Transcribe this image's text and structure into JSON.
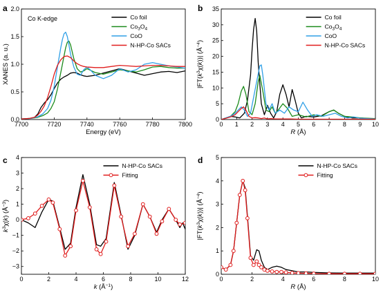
{
  "chart_data": [
    {
      "panel": "a",
      "type": "line",
      "annotation": "Co K-edge",
      "xlabel": "Energy (eV)",
      "ylabel": "XANES (a. u.)",
      "xlim": [
        7700,
        7800
      ],
      "ylim": [
        0,
        2.0
      ],
      "xticks": [
        "7700",
        "7720",
        "7740",
        "7760",
        "7780",
        "7800"
      ],
      "yticks": [
        "0.0",
        "0.5",
        "1.0",
        "1.5",
        "2.0"
      ],
      "legend": "top-right",
      "series": [
        {
          "name": "Co foil",
          "color": "#000000",
          "x": [
            7700,
            7705,
            7708,
            7710,
            7712,
            7714,
            7716,
            7718,
            7720,
            7722,
            7724,
            7726,
            7728,
            7730,
            7732,
            7734,
            7736,
            7738,
            7740,
            7745,
            7750,
            7755,
            7760,
            7765,
            7770,
            7775,
            7780,
            7785,
            7790,
            7795,
            7800
          ],
          "y": [
            0.01,
            0.02,
            0.04,
            0.1,
            0.22,
            0.3,
            0.36,
            0.45,
            0.56,
            0.66,
            0.73,
            0.77,
            0.8,
            0.84,
            0.85,
            0.84,
            0.81,
            0.79,
            0.78,
            0.8,
            0.84,
            0.88,
            0.92,
            0.88,
            0.84,
            0.8,
            0.83,
            0.86,
            0.87,
            0.85,
            0.88
          ]
        },
        {
          "name": "Co3O4",
          "color": "#1a8a1a",
          "x": [
            7700,
            7706,
            7710,
            7713,
            7716,
            7718,
            7720,
            7722,
            7724,
            7725,
            7726,
            7727,
            7728,
            7729,
            7730,
            7732,
            7734,
            7736,
            7738,
            7740,
            7745,
            7750,
            7755,
            7760,
            7765,
            7770,
            7775,
            7780,
            7785,
            7790,
            7795,
            7800
          ],
          "y": [
            0.01,
            0.02,
            0.04,
            0.07,
            0.12,
            0.2,
            0.32,
            0.55,
            0.85,
            1.0,
            1.15,
            1.3,
            1.4,
            1.42,
            1.35,
            1.1,
            0.92,
            0.86,
            0.88,
            0.92,
            0.85,
            0.82,
            0.86,
            0.9,
            0.88,
            0.86,
            0.9,
            0.95,
            0.96,
            0.94,
            0.93,
            0.93
          ]
        },
        {
          "name": "CoO",
          "color": "#2f9fe6",
          "x": [
            7700,
            7706,
            7710,
            7713,
            7716,
            7718,
            7720,
            7722,
            7724,
            7725,
            7726,
            7727,
            7728,
            7729,
            7730,
            7732,
            7734,
            7736,
            7738,
            7740,
            7742,
            7745,
            7750,
            7755,
            7760,
            7765,
            7770,
            7775,
            7780,
            7785,
            7790,
            7795,
            7800
          ],
          "y": [
            0.01,
            0.02,
            0.05,
            0.1,
            0.2,
            0.35,
            0.6,
            0.95,
            1.3,
            1.45,
            1.55,
            1.58,
            1.5,
            1.35,
            1.18,
            0.95,
            0.82,
            0.8,
            0.9,
            0.95,
            0.9,
            0.8,
            0.74,
            0.8,
            0.92,
            0.86,
            0.9,
            1.0,
            1.03,
            1.0,
            0.97,
            0.95,
            0.93
          ]
        },
        {
          "name": "N-HP-Co SACs",
          "color": "#e01b1b",
          "x": [
            7700,
            7705,
            7708,
            7710,
            7712,
            7714,
            7716,
            7718,
            7720,
            7722,
            7724,
            7726,
            7728,
            7730,
            7732,
            7734,
            7736,
            7738,
            7740,
            7745,
            7750,
            7755,
            7760,
            7765,
            7770,
            7775,
            7780,
            7785,
            7790,
            7795,
            7800
          ],
          "y": [
            0.01,
            0.02,
            0.04,
            0.08,
            0.15,
            0.25,
            0.4,
            0.6,
            0.82,
            0.98,
            1.08,
            1.14,
            1.15,
            1.12,
            1.06,
            1.01,
            0.98,
            0.96,
            0.95,
            0.94,
            0.94,
            0.96,
            0.98,
            0.97,
            0.96,
            0.97,
            0.98,
            0.98,
            0.97,
            0.96,
            0.96
          ]
        }
      ]
    },
    {
      "panel": "b",
      "type": "line",
      "xlabel": "R (Å)",
      "ylabel": "|FT(k³χ(k))| (Å⁻⁴)",
      "xlim": [
        0,
        10
      ],
      "ylim": [
        0,
        35
      ],
      "xticks": [
        "0",
        "1",
        "2",
        "3",
        "4",
        "5",
        "6",
        "7",
        "8",
        "9",
        "10"
      ],
      "yticks": [
        "0",
        "5",
        "10",
        "15",
        "20",
        "25",
        "30",
        "35"
      ],
      "legend": "top-right",
      "series": [
        {
          "name": "Co foil",
          "color": "#000000",
          "x": [
            0,
            0.3,
            0.6,
            0.9,
            1.2,
            1.5,
            1.7,
            1.9,
            2.0,
            2.1,
            2.2,
            2.3,
            2.4,
            2.6,
            2.8,
            3.0,
            3.2,
            3.4,
            3.6,
            3.8,
            4.0,
            4.2,
            4.4,
            4.6,
            4.8,
            5.0,
            5.2,
            5.5,
            6.0,
            6.5,
            7.0,
            7.3,
            7.6,
            8.0,
            8.5,
            9.0,
            9.5,
            10
          ],
          "y": [
            0,
            0.5,
            1.0,
            0.8,
            0.5,
            2.0,
            6.0,
            14.0,
            22.0,
            28.5,
            32.0,
            28.0,
            18.0,
            5.0,
            1.5,
            4.5,
            2.0,
            0.5,
            2.5,
            8.0,
            11.0,
            8.0,
            4.0,
            9.5,
            6.0,
            2.0,
            0.5,
            1.0,
            0.8,
            1.2,
            2.5,
            3.0,
            2.0,
            1.0,
            0.5,
            0.5,
            0.3,
            0.2
          ]
        },
        {
          "name": "Co3O4",
          "color": "#1a8a1a",
          "x": [
            0,
            0.3,
            0.6,
            0.9,
            1.1,
            1.3,
            1.45,
            1.6,
            1.8,
            2.0,
            2.2,
            2.4,
            2.5,
            2.7,
            2.9,
            3.1,
            3.3,
            3.5,
            3.7,
            4.0,
            4.3,
            4.6,
            5.0,
            5.5,
            6.0,
            6.5,
            7.0,
            7.3,
            7.6,
            8.0,
            8.5,
            9.0,
            10
          ],
          "y": [
            0,
            0.5,
            1.0,
            2.5,
            5.0,
            9.0,
            10.5,
            8.0,
            2.5,
            1.5,
            5.0,
            12.0,
            14.0,
            9.0,
            3.0,
            2.5,
            4.0,
            2.0,
            3.0,
            5.0,
            3.5,
            1.0,
            1.5,
            0.8,
            1.5,
            1.0,
            2.5,
            3.0,
            2.0,
            1.0,
            0.8,
            0.5,
            0.3
          ]
        },
        {
          "name": "CoO",
          "color": "#2f9fe6",
          "x": [
            0,
            0.3,
            0.6,
            0.9,
            1.1,
            1.3,
            1.5,
            1.7,
            1.9,
            2.1,
            2.3,
            2.5,
            2.6,
            2.7,
            2.9,
            3.1,
            3.3,
            3.5,
            3.8,
            4.1,
            4.4,
            4.7,
            5.0,
            5.3,
            5.6,
            5.9,
            6.2,
            6.6,
            7.0,
            7.4,
            7.8,
            8.2,
            8.6,
            9.0,
            9.5,
            10
          ],
          "y": [
            0,
            0.5,
            1.0,
            2.0,
            3.0,
            4.0,
            3.0,
            1.0,
            2.0,
            7.0,
            12.0,
            17.0,
            17.3,
            14.0,
            5.0,
            3.0,
            5.0,
            2.0,
            3.0,
            2.0,
            4.0,
            3.0,
            2.5,
            5.5,
            3.0,
            1.0,
            1.5,
            1.0,
            1.5,
            2.0,
            1.0,
            0.5,
            0.8,
            0.4,
            0.3,
            0.2
          ]
        },
        {
          "name": "N-HP-Co SACs",
          "color": "#e01b1b",
          "x": [
            0,
            0.3,
            0.6,
            0.9,
            1.1,
            1.3,
            1.45,
            1.6,
            1.8,
            2.0,
            2.2,
            2.4,
            2.6,
            2.8,
            3.0,
            3.2,
            3.5,
            4.0,
            4.5,
            5.0,
            5.5,
            6.0,
            6.5,
            7.0,
            8.0,
            9.0,
            10
          ],
          "y": [
            0,
            0.4,
            0.8,
            1.5,
            2.5,
            3.5,
            4.0,
            3.0,
            1.0,
            0.5,
            0.6,
            0.5,
            0.3,
            0.5,
            0.2,
            0.3,
            0.2,
            0.2,
            0.2,
            0.1,
            0.1,
            0.1,
            0.1,
            0.1,
            0.1,
            0.1,
            0.1
          ]
        }
      ]
    },
    {
      "panel": "c",
      "type": "line",
      "xlabel": "k (Å⁻¹)",
      "ylabel": "k³χ(k) (Å⁻³)",
      "xlim": [
        0,
        12
      ],
      "ylim": [
        -3.5,
        4
      ],
      "xticks": [
        "0",
        "2",
        "4",
        "6",
        "8",
        "10",
        "12"
      ],
      "yticks": [
        "−3",
        "−2",
        "−1",
        "0",
        "1",
        "2",
        "3",
        "4"
      ],
      "legend": "top-right",
      "series": [
        {
          "name": "N-HP-Co SACs",
          "color": "#000000",
          "x": [
            0,
            0.5,
            1.0,
            1.5,
            2.0,
            2.3,
            2.8,
            3.2,
            3.6,
            4.0,
            4.5,
            5.0,
            5.5,
            5.8,
            6.2,
            6.8,
            7.3,
            7.8,
            8.3,
            8.9,
            9.4,
            9.9,
            10.3,
            10.8,
            11.3,
            11.6,
            11.8,
            12.0
          ],
          "y": [
            0,
            -0.2,
            -0.5,
            0.5,
            1.3,
            1.2,
            -0.5,
            -1.9,
            -1.5,
            0.8,
            2.9,
            1.0,
            -1.6,
            -1.7,
            -1.2,
            2.4,
            0.3,
            -1.9,
            -1.0,
            1.0,
            0.2,
            -0.8,
            0.0,
            0.7,
            0.0,
            -0.5,
            -0.2,
            -0.6
          ]
        },
        {
          "name": "Fitting",
          "color": "#e01b1b",
          "marker": "open-circle",
          "x": [
            0,
            0.5,
            1.0,
            1.5,
            2.0,
            2.3,
            2.8,
            3.2,
            3.6,
            4.0,
            4.5,
            5.0,
            5.5,
            5.8,
            6.2,
            6.8,
            7.3,
            7.8,
            8.3,
            8.9,
            9.4,
            9.9,
            10.3,
            10.8,
            11.3,
            11.6,
            12.0
          ],
          "y": [
            0,
            0.1,
            0.4,
            0.9,
            1.3,
            1.1,
            -0.6,
            -2.3,
            -1.7,
            0.6,
            2.5,
            0.8,
            -1.9,
            -2.2,
            -1.4,
            2.2,
            0.2,
            -1.7,
            -0.9,
            1.0,
            0.2,
            -0.9,
            -0.1,
            0.7,
            0.0,
            -0.3,
            -0.2
          ]
        }
      ]
    },
    {
      "panel": "d",
      "type": "line",
      "xlabel": "R (Å)",
      "ylabel": "|FT(k³χ(k))| (Å⁻⁴)",
      "xlim": [
        0,
        10
      ],
      "ylim": [
        0,
        5
      ],
      "xticks": [
        "0",
        "2",
        "4",
        "6",
        "8",
        "10"
      ],
      "yticks": [
        "0",
        "1",
        "2",
        "3",
        "4",
        "5"
      ],
      "legend": "top-right",
      "series": [
        {
          "name": "N-HP-Co SACs",
          "color": "#000000",
          "x": [
            0,
            0.3,
            0.6,
            0.8,
            1.0,
            1.2,
            1.4,
            1.55,
            1.7,
            1.9,
            2.1,
            2.3,
            2.45,
            2.6,
            2.8,
            3.0,
            3.3,
            3.6,
            3.9,
            4.2,
            4.6,
            5.0,
            5.5,
            6.0,
            7.0,
            8.0,
            9.0,
            10
          ],
          "y": [
            0.3,
            0.2,
            0.4,
            1.0,
            2.2,
            3.4,
            4.0,
            3.7,
            2.5,
            0.8,
            0.6,
            1.05,
            1.0,
            0.6,
            0.3,
            0.2,
            0.3,
            0.35,
            0.3,
            0.2,
            0.15,
            0.1,
            0.1,
            0.08,
            0.06,
            0.05,
            0.05,
            0.05
          ]
        },
        {
          "name": "Fitting",
          "color": "#e01b1b",
          "marker": "open-circle",
          "x": [
            0,
            0.3,
            0.6,
            0.8,
            1.0,
            1.2,
            1.4,
            1.55,
            1.7,
            1.9,
            2.1,
            2.3,
            2.45,
            2.6,
            2.8,
            3.0,
            3.3,
            3.6,
            3.9,
            4.2,
            4.6,
            5.0,
            5.5,
            6.0,
            7.0,
            8.0,
            9.0,
            10
          ],
          "y": [
            0.3,
            0.2,
            0.4,
            1.0,
            2.2,
            3.4,
            4.0,
            3.6,
            2.4,
            0.7,
            0.4,
            0.55,
            0.4,
            0.3,
            0.2,
            0.15,
            0.12,
            0.1,
            0.1,
            0.08,
            0.06,
            0.05,
            0.04,
            0.03,
            0.02,
            0.02,
            0.02,
            0.02
          ]
        }
      ]
    }
  ]
}
